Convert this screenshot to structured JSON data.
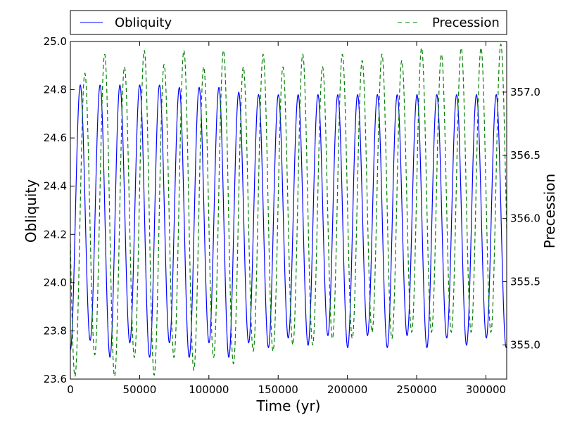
{
  "chart_data": {
    "type": "line",
    "title": "",
    "xlabel": "Time (yr)",
    "ylabel_left": "Obliquity",
    "ylabel_right": "Precession",
    "xlim": [
      0,
      315000
    ],
    "ylim_left": [
      23.6,
      25.0
    ],
    "ylim_right": [
      354.73,
      357.4
    ],
    "x_ticks": [
      0,
      50000,
      100000,
      150000,
      200000,
      250000,
      300000
    ],
    "x_tick_labels": [
      "0",
      "50000",
      "100000",
      "150000",
      "200000",
      "250000",
      "300000"
    ],
    "y_left_ticks": [
      23.6,
      23.8,
      24.0,
      24.2,
      24.4,
      24.6,
      24.8,
      25.0
    ],
    "y_left_tick_labels": [
      "23.6",
      "23.8",
      "24.0",
      "24.2",
      "24.4",
      "24.6",
      "24.8",
      "25.0"
    ],
    "y_right_ticks": [
      355.0,
      355.5,
      356.0,
      356.5,
      357.0
    ],
    "y_right_tick_labels": [
      "355.0",
      "355.5",
      "356.0",
      "356.5",
      "357.0"
    ],
    "grid": false,
    "legend_position": "top, above plot",
    "series": [
      {
        "name": "Obliquity",
        "axis": "left",
        "color": "#0000ff",
        "linestyle": "solid",
        "period": 14300,
        "peaks_x": [
          7150,
          21450,
          35750,
          50050,
          64350,
          78650,
          92950,
          107250,
          121550,
          135850,
          150150,
          164450,
          178750,
          193050,
          207350,
          221650,
          235950,
          250250,
          264550,
          278850,
          293150,
          307450
        ],
        "peaks_y": [
          24.82,
          24.82,
          24.82,
          24.82,
          24.82,
          24.81,
          24.81,
          24.81,
          24.79,
          24.78,
          24.78,
          24.78,
          24.78,
          24.78,
          24.78,
          24.78,
          24.78,
          24.78,
          24.78,
          24.78,
          24.78,
          24.78
        ],
        "troughs_x": [
          0,
          14300,
          28600,
          42900,
          57200,
          71500,
          85800,
          100100,
          114400,
          128700,
          143000,
          157300,
          171600,
          185900,
          200200,
          214500,
          228800,
          243100,
          257400,
          271700,
          286000,
          300300,
          314600
        ],
        "troughs_y": [
          23.72,
          23.76,
          23.69,
          23.75,
          23.69,
          23.75,
          23.69,
          23.75,
          23.69,
          23.75,
          23.73,
          23.77,
          23.74,
          23.78,
          23.73,
          23.78,
          23.73,
          23.78,
          23.73,
          23.77,
          23.74,
          23.77,
          23.73
        ]
      },
      {
        "name": "Precession",
        "axis": "right",
        "color": "#008000",
        "linestyle": "dashed",
        "period": 14300,
        "phase_lag": 3300,
        "peaks_x": [
          10450,
          24750,
          39050,
          53350,
          67650,
          81950,
          96250,
          110550,
          124850,
          139150,
          153450,
          167750,
          182050,
          196350,
          210650,
          224950,
          239250,
          253550,
          267850,
          282150,
          296450,
          310750
        ],
        "peaks_y": [
          357.15,
          357.3,
          357.2,
          357.33,
          357.22,
          357.33,
          357.2,
          357.33,
          357.2,
          357.3,
          357.2,
          357.3,
          357.2,
          357.3,
          357.25,
          357.3,
          357.25,
          357.35,
          357.3,
          357.35,
          357.35,
          357.38
        ],
        "troughs_x": [
          3300,
          17600,
          31900,
          46200,
          60500,
          74800,
          89100,
          103400,
          117700,
          132000,
          146300,
          160600,
          174900,
          189200,
          203500,
          217800,
          232100,
          246400,
          260700,
          275000,
          289300,
          303600
        ],
        "troughs_y": [
          354.75,
          354.92,
          354.75,
          354.9,
          354.76,
          354.9,
          354.8,
          354.9,
          354.85,
          354.95,
          354.95,
          355.0,
          355.0,
          355.05,
          355.05,
          355.1,
          355.05,
          355.1,
          355.1,
          355.1,
          355.1,
          355.1
        ]
      }
    ]
  }
}
